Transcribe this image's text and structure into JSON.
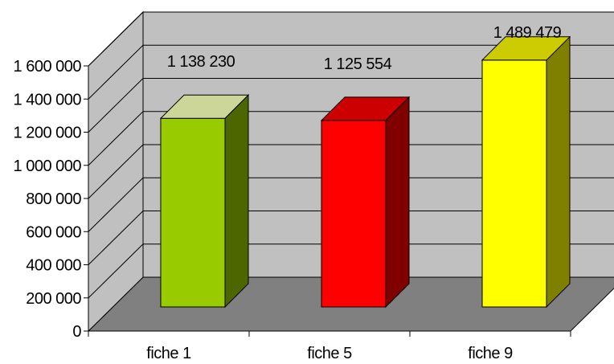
{
  "chart_data": {
    "type": "bar",
    "title": "",
    "xlabel": "",
    "ylabel": "",
    "three_d": true,
    "grid": true,
    "legend": "none",
    "ylim": [
      0,
      1600000
    ],
    "y_ticks": [
      0,
      200000,
      400000,
      600000,
      800000,
      1000000,
      1200000,
      1400000,
      1600000
    ],
    "y_tick_labels": [
      "0",
      "200 000",
      "400 000",
      "600 000",
      "800 000",
      "1 000 000",
      "1 200 000",
      "1 400 000",
      "1 600 000"
    ],
    "categories": [
      "fiche 1",
      "fiche 5",
      "fiche 9"
    ],
    "values": [
      1138230,
      1125554,
      1489479
    ],
    "data_labels": [
      "1 138 230",
      "1 125 554",
      "1 489 479"
    ],
    "colors": {
      "bars": [
        "#99cc00",
        "#ff0000",
        "#ffff00"
      ],
      "bar_tops": [
        "#ccd699",
        "#cc0000",
        "#cccc00"
      ],
      "bar_sides": [
        "#4d6600",
        "#800000",
        "#808000"
      ],
      "back_wall": "#c0c0c0",
      "side_wall": "#c0c0c0",
      "floor": "#808080",
      "gridlines": "#000000"
    }
  }
}
